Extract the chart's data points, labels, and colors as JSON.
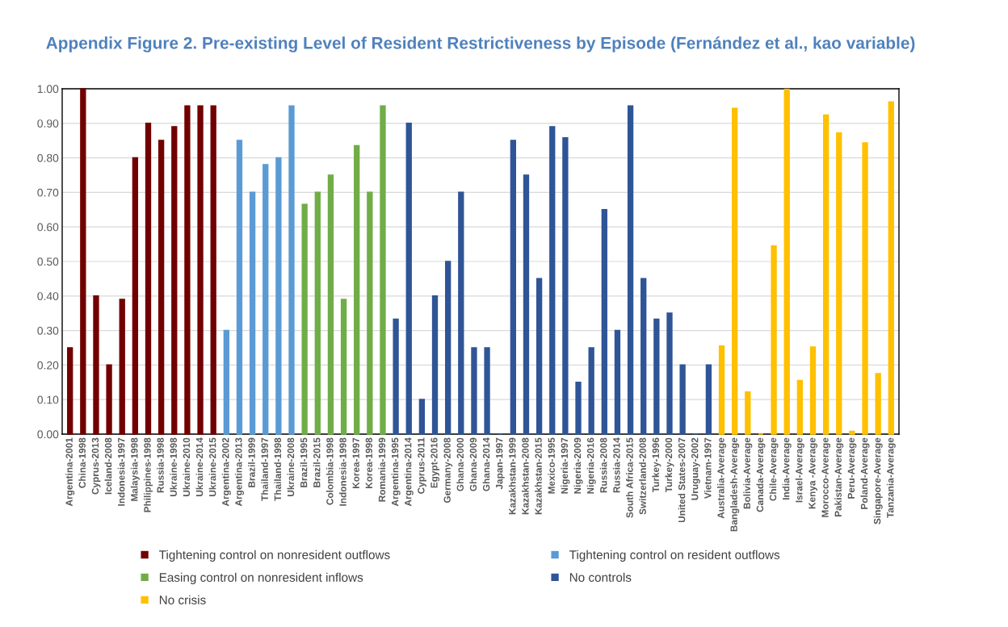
{
  "chart_data": {
    "type": "bar",
    "title": "Appendix Figure 2. Pre-existing Level of Resident Restrictiveness by Episode (Fernández et al., kao variable)",
    "categories": [
      "Argentina-2001",
      "China-1998",
      "Cyprus-2013",
      "Iceland-2008",
      "Indonesia-1997",
      "Malaysia-1998",
      "Philippines-1998",
      "Russia-1998",
      "Ukraine-1998",
      "Ukraine-2010",
      "Ukraine-2014",
      "Ukraine-2015",
      "Argentina-2002",
      "Argentina-2013",
      "Brazil-1999",
      "Thailand-1997",
      "Thailand-1998",
      "Ukraine-2008",
      "Brazil-1995",
      "Brazil-2015",
      "Colombia-1998",
      "Indonesia-1998",
      "Korea-1997",
      "Korea-1998",
      "Romania-1999",
      "Argentina-1995",
      "Argentina-2014",
      "Cyprus-2011",
      "Egypt-2016",
      "Germany-2008",
      "Ghana-2000",
      "Ghana-2009",
      "Ghana-2014",
      "Japan-1997",
      "Kazakhstan-1999",
      "Kazakhstan-2008",
      "Kazakhstan-2015",
      "Mexico-1995",
      "Nigeria-1997",
      "Nigeria-2009",
      "Nigeria-2016",
      "Russia-2008",
      "Russia-2014",
      "South Africa-2015",
      "Switzerland-2008",
      "Turkey-1996",
      "Turkey-2000",
      "United States-2007",
      "Uruguay-2002",
      "Vietnam-1997",
      "Australia-Average",
      "Bangladesh-Average",
      "Bolivia-Average",
      "Canada-Average",
      "Chile-Average",
      "India-Average",
      "Israel-Average",
      "Kenya -Average",
      "Morocco-Average",
      "Pakistan-Average",
      "Peru-Average",
      "Poland-Average",
      "Singapore-Average",
      "Tanzania-Average"
    ],
    "series": [
      {
        "name": "Tightening control on nonresident outflows",
        "color": "#720000",
        "values": [
          0.25,
          1.0,
          0.4,
          0.2,
          0.39,
          0.8,
          0.9,
          0.85,
          0.89,
          0.95,
          0.95,
          0.95,
          null,
          null,
          null,
          null,
          null,
          null,
          null,
          null,
          null,
          null,
          null,
          null,
          null,
          null,
          null,
          null,
          null,
          null,
          null,
          null,
          null,
          null,
          null,
          null,
          null,
          null,
          null,
          null,
          null,
          null,
          null,
          null,
          null,
          null,
          null,
          null,
          null,
          null,
          null,
          null,
          null,
          null,
          null,
          null,
          null,
          null,
          null,
          null,
          null,
          null,
          null,
          null
        ]
      },
      {
        "name": "Tightening control on resident outflows",
        "color": "#5b9bd5",
        "values": [
          null,
          null,
          null,
          null,
          null,
          null,
          null,
          null,
          null,
          null,
          null,
          null,
          0.3,
          0.85,
          0.7,
          0.78,
          0.8,
          0.95,
          null,
          null,
          null,
          null,
          null,
          null,
          null,
          null,
          null,
          null,
          null,
          null,
          null,
          null,
          null,
          null,
          null,
          null,
          null,
          null,
          null,
          null,
          null,
          null,
          null,
          null,
          null,
          null,
          null,
          null,
          null,
          null,
          null,
          null,
          null,
          null,
          null,
          null,
          null,
          null,
          null,
          null,
          null,
          null,
          null,
          null
        ]
      },
      {
        "name": "Easing control on nonresident inflows",
        "color": "#70ad47",
        "values": [
          null,
          null,
          null,
          null,
          null,
          null,
          null,
          null,
          null,
          null,
          null,
          null,
          null,
          null,
          null,
          null,
          null,
          null,
          0.665,
          0.7,
          0.75,
          0.39,
          0.835,
          0.7,
          0.95,
          null,
          null,
          null,
          null,
          null,
          null,
          null,
          null,
          null,
          null,
          null,
          null,
          null,
          null,
          null,
          null,
          null,
          null,
          null,
          null,
          null,
          null,
          null,
          null,
          null,
          null,
          null,
          null,
          null,
          null,
          null,
          null,
          null,
          null,
          null,
          null,
          null,
          null,
          null
        ]
      },
      {
        "name": "No controls",
        "color": "#2f5597",
        "values": [
          null,
          null,
          null,
          null,
          null,
          null,
          null,
          null,
          null,
          null,
          null,
          null,
          null,
          null,
          null,
          null,
          null,
          null,
          null,
          null,
          null,
          null,
          null,
          null,
          null,
          0.333,
          0.9,
          0.1,
          0.4,
          0.5,
          0.7,
          0.25,
          0.25,
          0.0,
          0.85,
          0.75,
          0.45,
          0.89,
          0.858,
          0.15,
          0.25,
          0.65,
          0.3,
          0.95,
          0.45,
          0.333,
          0.35,
          0.2,
          0.0,
          0.2,
          null,
          null,
          null,
          null,
          null,
          null,
          null,
          null,
          null,
          null,
          null,
          null,
          null,
          null
        ]
      },
      {
        "name": "No crisis",
        "color": "#ffc000",
        "values": [
          null,
          null,
          null,
          null,
          null,
          null,
          null,
          null,
          null,
          null,
          null,
          null,
          null,
          null,
          null,
          null,
          null,
          null,
          null,
          null,
          null,
          null,
          null,
          null,
          null,
          null,
          null,
          null,
          null,
          null,
          null,
          null,
          null,
          null,
          null,
          null,
          null,
          null,
          null,
          null,
          null,
          null,
          null,
          null,
          null,
          null,
          null,
          null,
          null,
          null,
          0.255,
          0.943,
          0.122,
          0.0,
          0.545,
          0.998,
          0.155,
          0.252,
          0.924,
          0.872,
          0.008,
          0.843,
          0.175,
          0.962
        ]
      }
    ],
    "ylim": [
      0,
      1.0
    ],
    "yticks": [
      {
        "value": 0,
        "label": "0.00"
      },
      {
        "value": 0.1,
        "label": "0.10"
      },
      {
        "value": 0.2,
        "label": "0.20"
      },
      {
        "value": 0.3,
        "label": "0.30"
      },
      {
        "value": 0.4,
        "label": "0.40"
      },
      {
        "value": 0.5,
        "label": "0.50"
      },
      {
        "value": 0.6,
        "label": "0.60"
      },
      {
        "value": 0.7,
        "label": "0.70"
      },
      {
        "value": 0.8,
        "label": "0.80"
      },
      {
        "value": 0.9,
        "label": "0.90"
      },
      {
        "value": 1.0,
        "label": "1.00"
      }
    ],
    "grid": "y",
    "legend": "bottom"
  }
}
